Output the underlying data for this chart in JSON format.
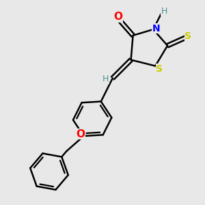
{
  "bg_color": "#e8e8e8",
  "bond_color": "#000000",
  "bond_width": 1.8,
  "atom_colors": {
    "O": "#ff0000",
    "N": "#0000ff",
    "S": "#cccc00",
    "H_gray": "#4a9090",
    "C": "#000000"
  },
  "font_size": 9,
  "figsize": [
    3.0,
    3.0
  ],
  "dpi": 100,
  "xlim": [
    0,
    10
  ],
  "ylim": [
    0,
    10
  ]
}
